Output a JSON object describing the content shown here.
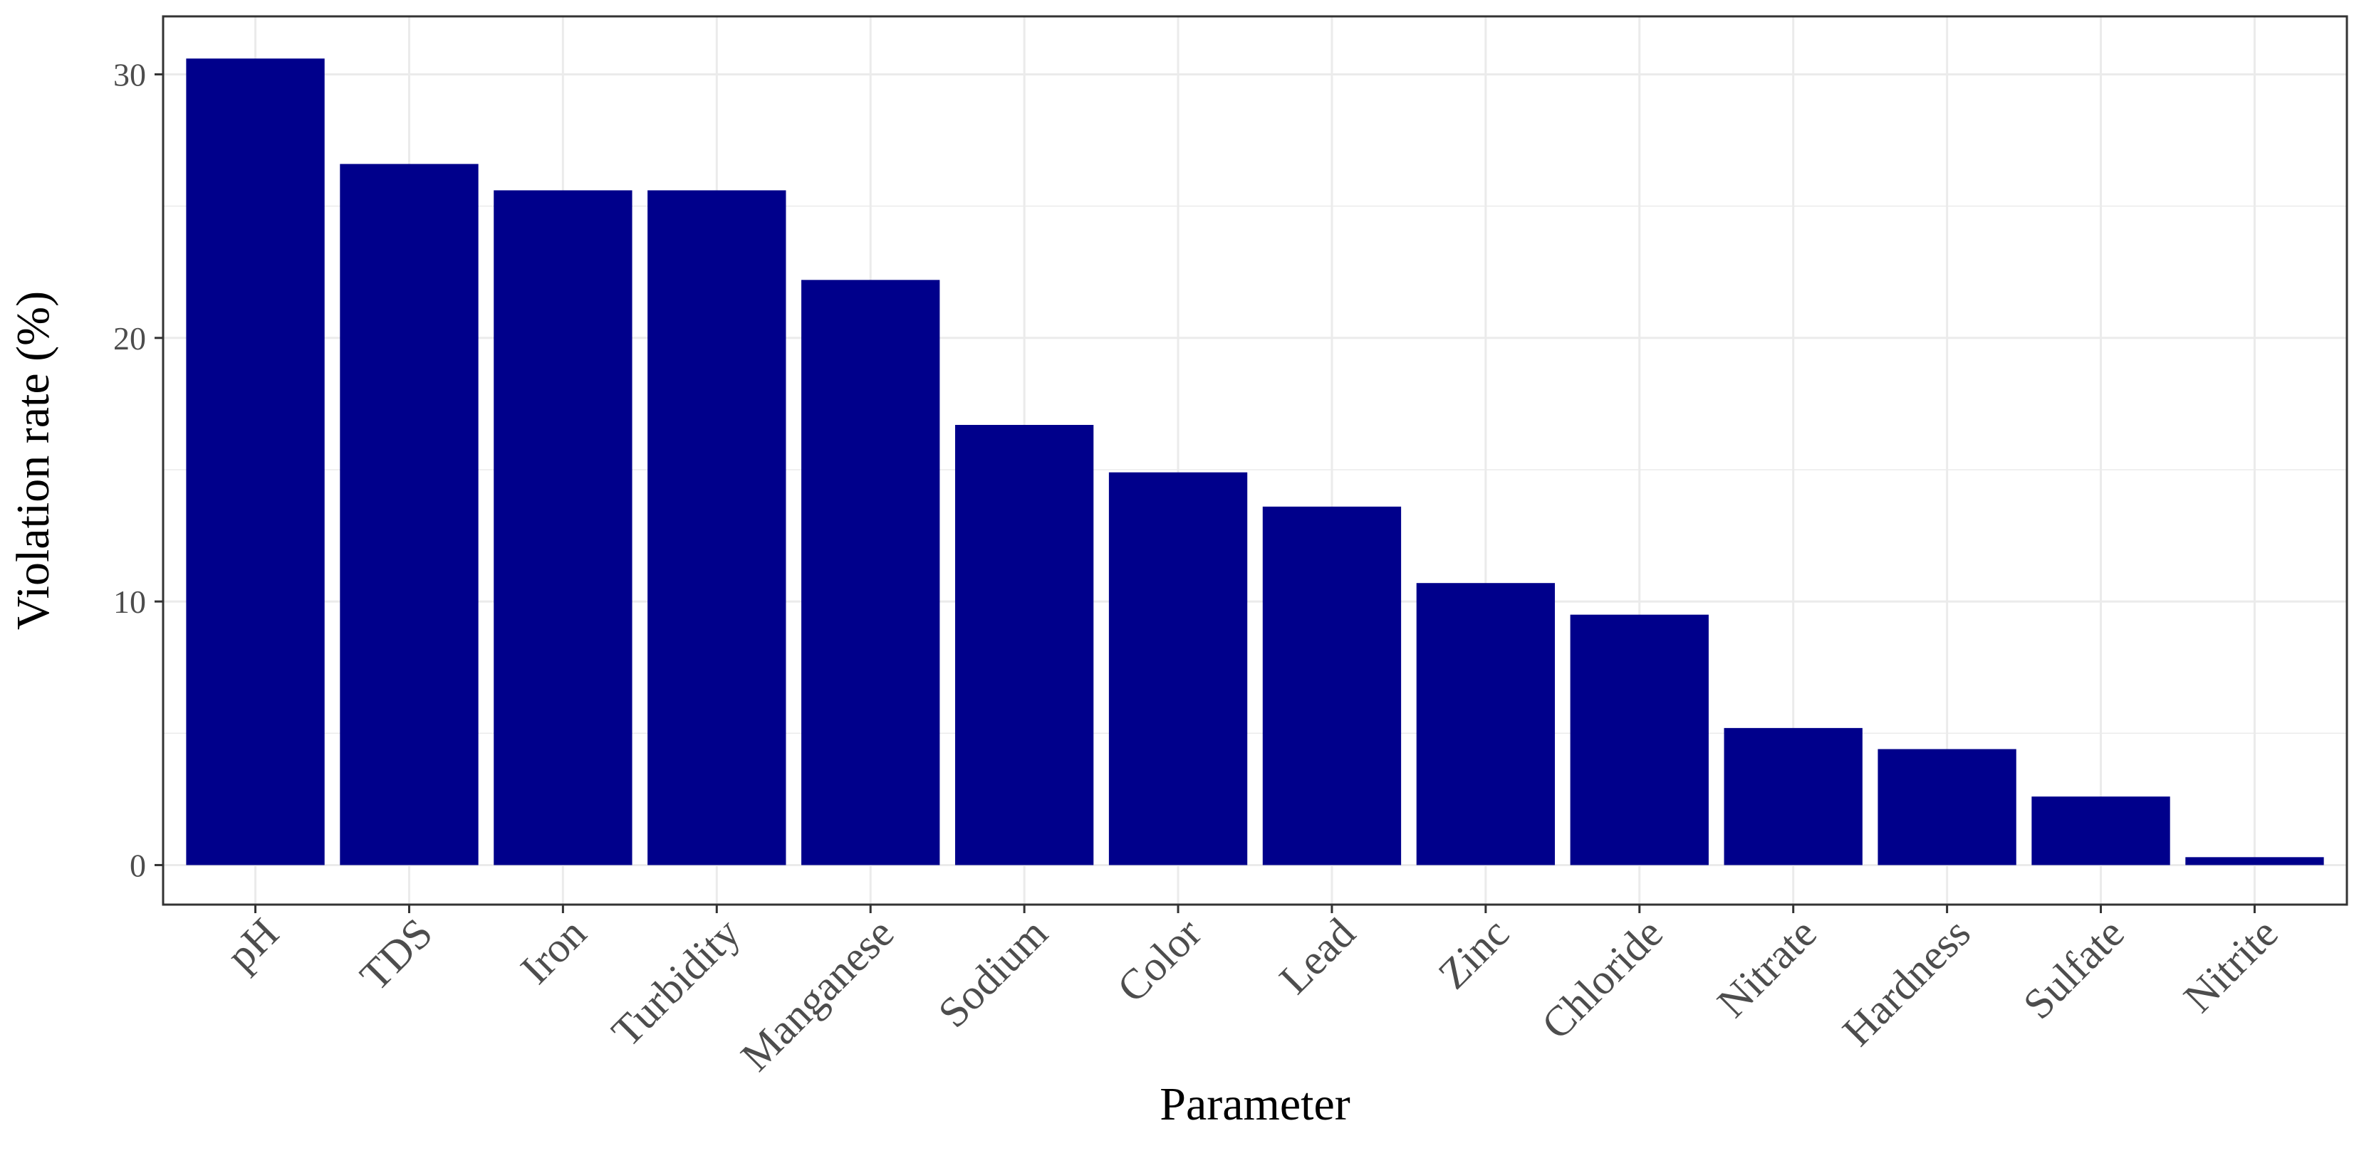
{
  "chart_data": {
    "type": "bar",
    "title": "",
    "xlabel": "Parameter",
    "ylabel": "Violation rate (%)",
    "categories": [
      "pH",
      "TDS",
      "Iron",
      "Turbidity",
      "Manganese",
      "Sodium",
      "Color",
      "Lead",
      "Zinc",
      "Chloride",
      "Nitrate",
      "Hardness",
      "Sulfate",
      "Nitrite"
    ],
    "values": [
      30.6,
      26.6,
      25.6,
      25.6,
      22.2,
      16.7,
      14.9,
      13.6,
      10.7,
      9.5,
      5.2,
      4.4,
      2.6,
      0.3
    ],
    "ylim": [
      -1.5,
      32.2
    ],
    "yticks": [
      0,
      10,
      20,
      30
    ],
    "grid": true,
    "bar_color": "#00008b",
    "tick_label_color": "#4d4d4d",
    "grid_color": "#ebebeb",
    "panel_border_color": "#333333"
  }
}
